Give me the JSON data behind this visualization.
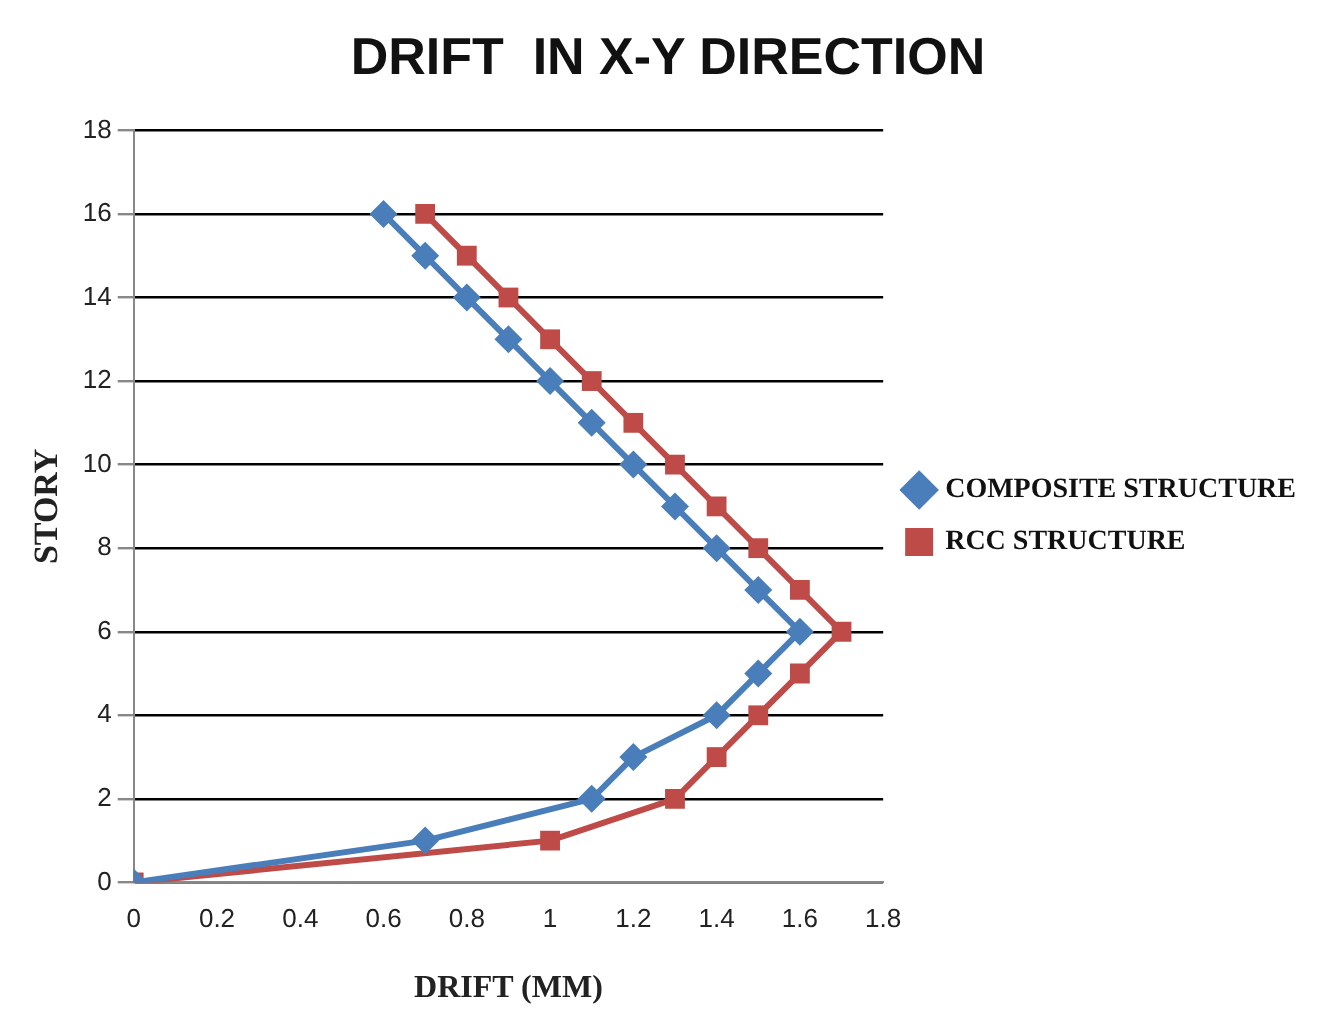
{
  "chart_data": {
    "type": "line",
    "title": "DRIFT  IN X-Y DIRECTION",
    "xlabel": "DRIFT (MM)",
    "ylabel": "STORY",
    "series": [
      {
        "name": "COMPOSITE STRUCTURE",
        "color": "#4a7ebb",
        "marker": "diamond",
        "x": [
          0,
          0.7,
          1.1,
          1.2,
          1.4,
          1.5,
          1.6,
          1.5,
          1.4,
          1.3,
          1.2,
          1.1,
          1.0,
          0.9,
          0.8,
          0.7,
          0.6
        ],
        "values": [
          0,
          1,
          2,
          3,
          4,
          5,
          6,
          7,
          8,
          9,
          10,
          11,
          12,
          13,
          14,
          15,
          16
        ]
      },
      {
        "name": "RCC STRUCTURE",
        "color": "#be4b48",
        "marker": "square",
        "x": [
          0,
          1.0,
          1.3,
          1.4,
          1.5,
          1.6,
          1.7,
          1.6,
          1.5,
          1.4,
          1.3,
          1.2,
          1.1,
          1.0,
          0.9,
          0.8,
          0.7
        ],
        "values": [
          0,
          1,
          2,
          3,
          4,
          5,
          6,
          7,
          8,
          9,
          10,
          11,
          12,
          13,
          14,
          15,
          16
        ]
      }
    ],
    "xlim": [
      0,
      1.8
    ],
    "xticks": [
      0,
      0.2,
      0.4,
      0.6,
      0.8,
      1,
      1.2,
      1.4,
      1.6,
      1.8
    ],
    "ylim": [
      0,
      18
    ],
    "yticks": [
      0,
      2,
      4,
      6,
      8,
      10,
      12,
      14,
      16,
      18
    ],
    "grid": "y",
    "legend": "right"
  }
}
